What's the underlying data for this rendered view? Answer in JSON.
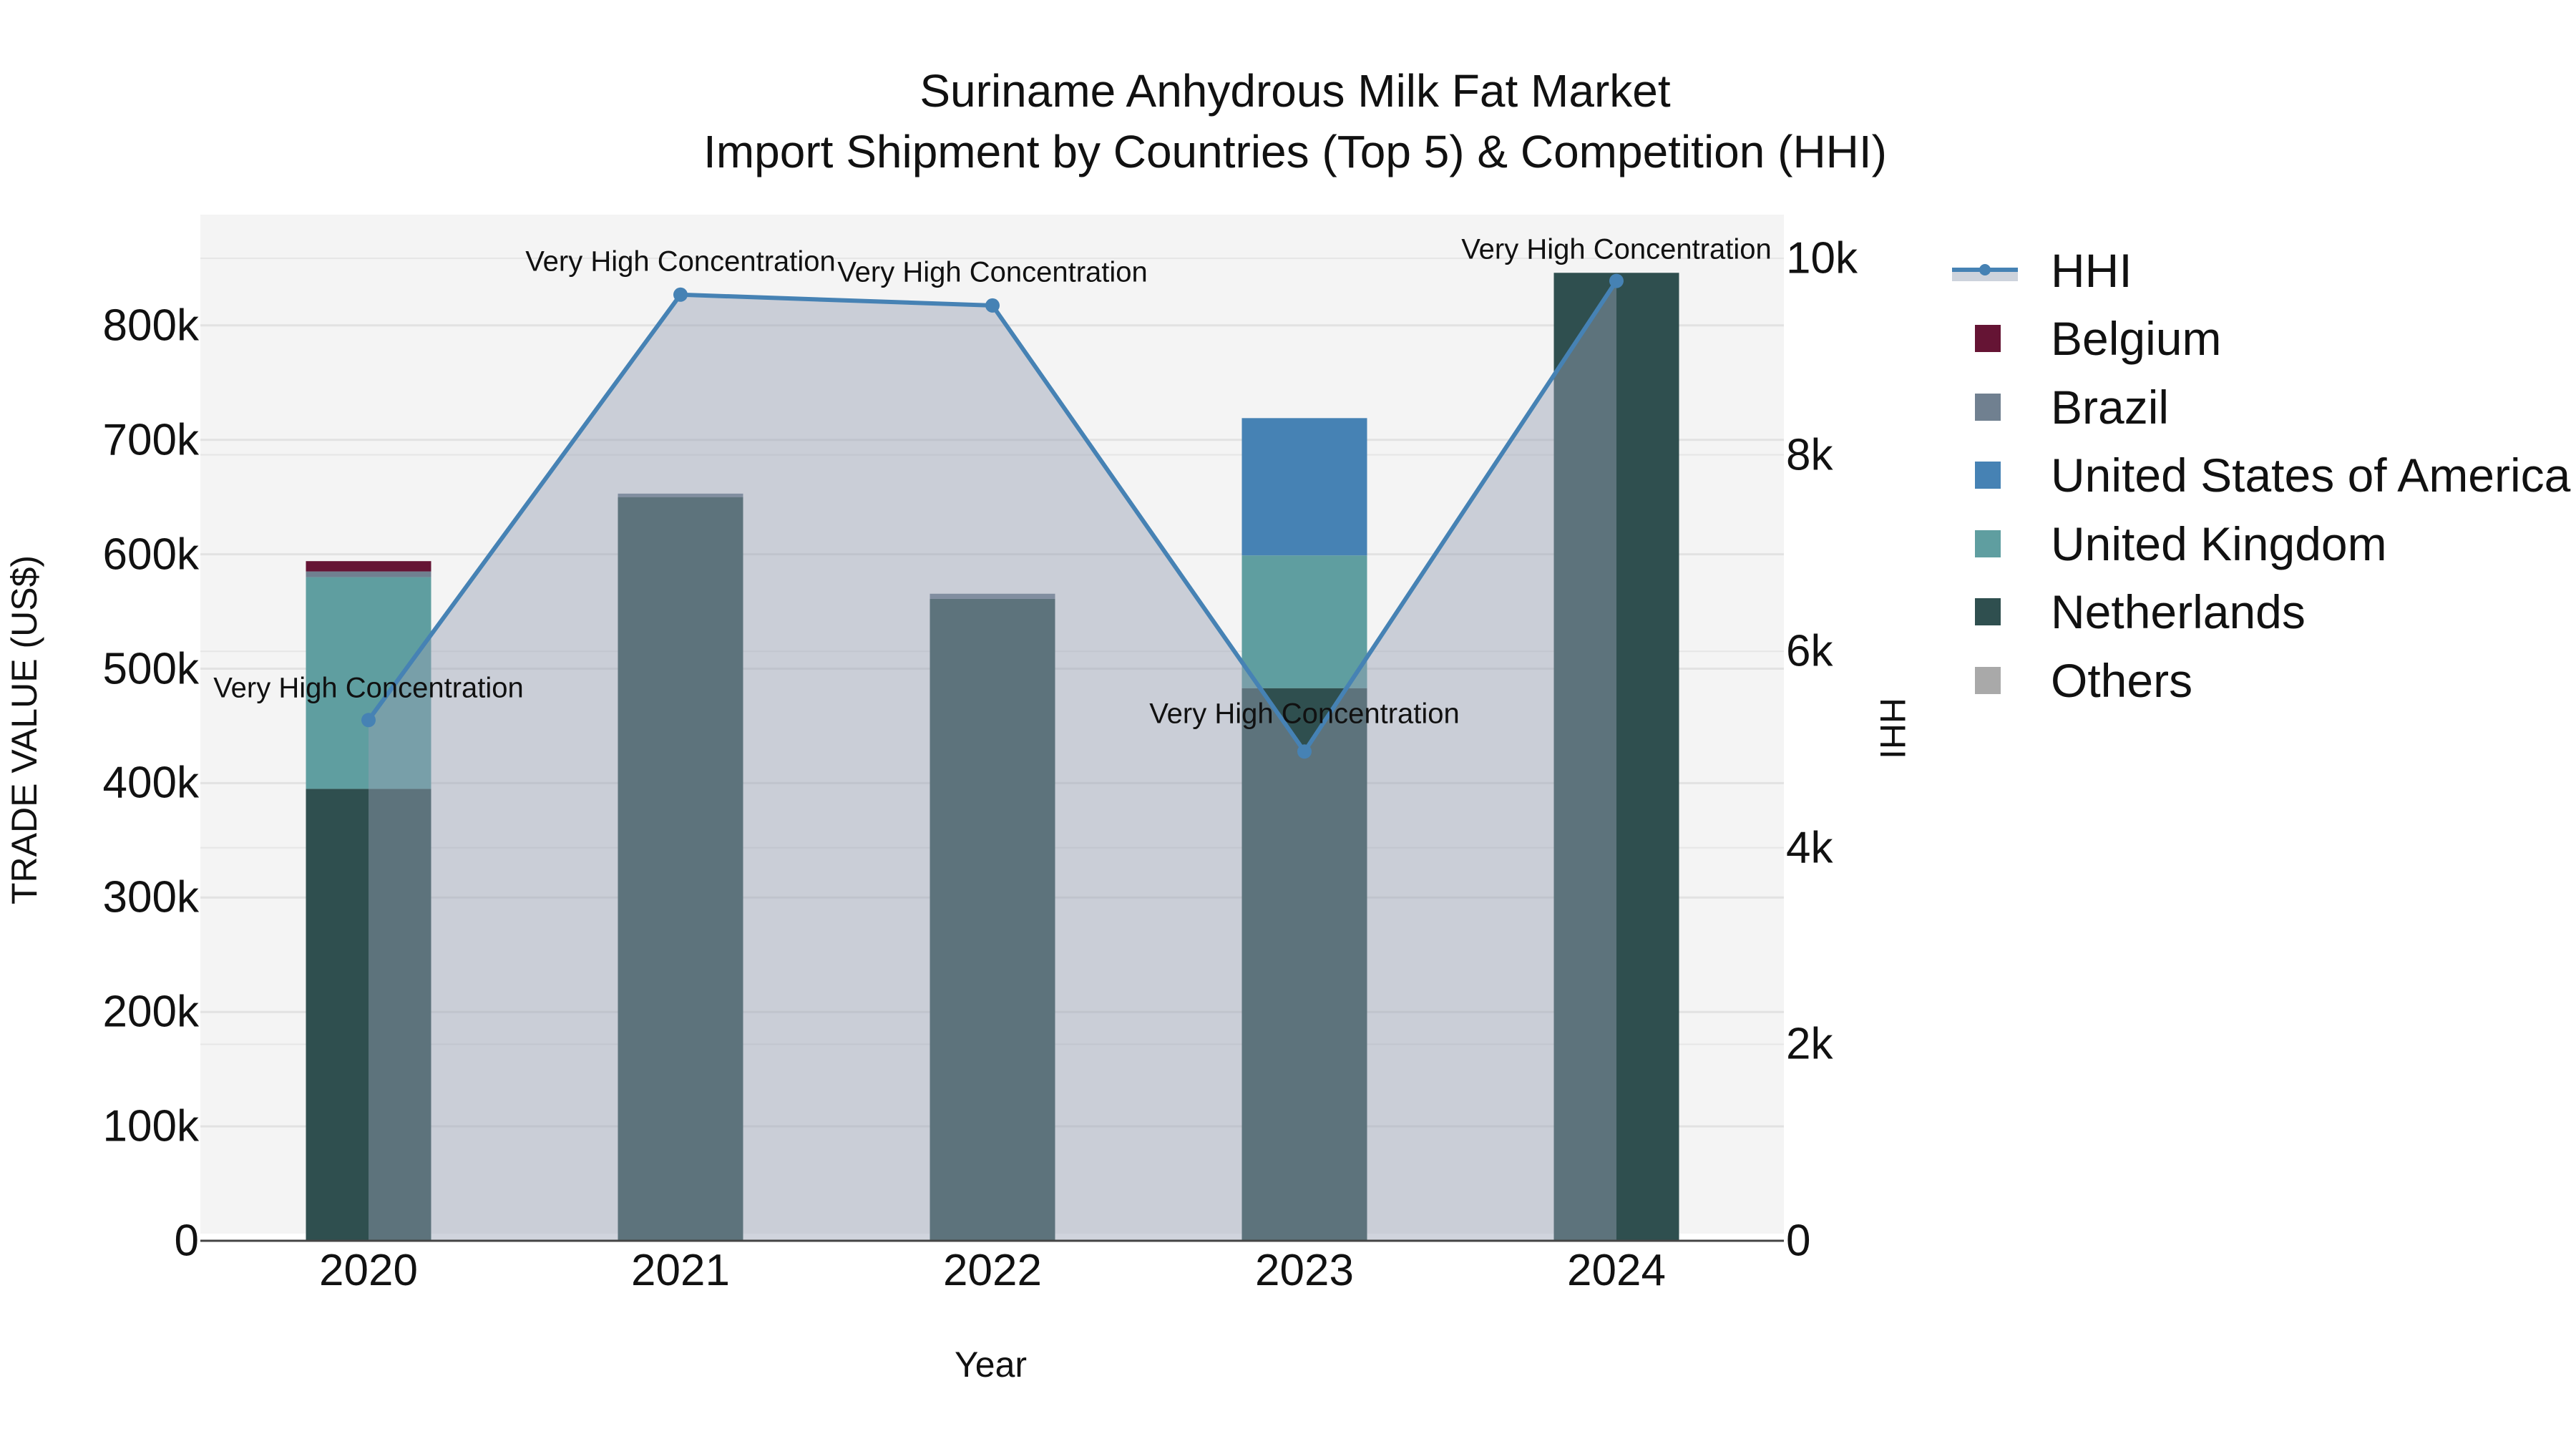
{
  "title": {
    "line1": "Suriname Anhydrous Milk Fat Market",
    "line2": "Import Shipment by Countries (Top 5) & Competition (HHI)"
  },
  "axes": {
    "x_title": "Year",
    "y_title": "TRADE VALUE (US$)",
    "y2_title": "HHI",
    "y_ticks": [
      "0",
      "100k",
      "200k",
      "300k",
      "400k",
      "500k",
      "600k",
      "700k",
      "800k"
    ],
    "y2_ticks": [
      "0",
      "2k",
      "4k",
      "6k",
      "8k",
      "10k"
    ],
    "x_ticks": [
      "2020",
      "2021",
      "2022",
      "2023",
      "2024"
    ]
  },
  "legend": {
    "items": [
      {
        "label": "HHI",
        "color": "#4682B4",
        "kind": "line"
      },
      {
        "label": "Belgium",
        "color": "#651434",
        "kind": "bar"
      },
      {
        "label": "Brazil",
        "color": "#708090",
        "kind": "bar"
      },
      {
        "label": "United States of America",
        "color": "#4682B4",
        "kind": "bar"
      },
      {
        "label": "United Kingdom",
        "color": "#5F9EA0",
        "kind": "bar"
      },
      {
        "label": "Netherlands",
        "color": "#2F4F4F",
        "kind": "bar"
      },
      {
        "label": "Others",
        "color": "#A9A9A9",
        "kind": "bar"
      }
    ]
  },
  "annotations": [
    {
      "year": "2020",
      "text": "Very High Concentration"
    },
    {
      "year": "2021",
      "text": "Very High Concentration"
    },
    {
      "year": "2022",
      "text": "Very High Concentration"
    },
    {
      "year": "2023",
      "text": "Very High Concentration"
    },
    {
      "year": "2024",
      "text": "Very High Concentration"
    }
  ],
  "chart_data": {
    "type": "bar",
    "stacked": true,
    "title": "Suriname Anhydrous Milk Fat Market — Import Shipment by Countries (Top 5) & Competition (HHI)",
    "xlabel": "Year",
    "ylabel": "TRADE VALUE (US$)",
    "y2label": "HHI",
    "categories": [
      "2020",
      "2021",
      "2022",
      "2023",
      "2024"
    ],
    "ylim": [
      0,
      890000
    ],
    "y2lim": [
      0,
      10350
    ],
    "grid": true,
    "legend_position": "right",
    "series": [
      {
        "name": "Netherlands",
        "type": "bar",
        "color": "#2F4F4F",
        "values": [
          395000,
          650000,
          561000,
          483000,
          846000
        ]
      },
      {
        "name": "United Kingdom",
        "type": "bar",
        "color": "#5F9EA0",
        "values": [
          185000,
          0,
          0,
          116000,
          0
        ]
      },
      {
        "name": "United States of America",
        "type": "bar",
        "color": "#4682B4",
        "values": [
          0,
          0,
          0,
          120000,
          0
        ]
      },
      {
        "name": "Brazil",
        "type": "bar",
        "color": "#708090",
        "values": [
          5000,
          3000,
          4500,
          0,
          0
        ]
      },
      {
        "name": "Belgium",
        "type": "bar",
        "color": "#651434",
        "values": [
          9000,
          0,
          0,
          0,
          0
        ]
      },
      {
        "name": "Others",
        "type": "bar",
        "color": "#A9A9A9",
        "values": [
          0,
          0,
          0,
          0,
          0
        ]
      },
      {
        "name": "HHI",
        "type": "line",
        "axis": "y2",
        "fill": "tozeroy",
        "color": "#4682B4",
        "values": [
          5300,
          9630,
          9520,
          4980,
          9770
        ],
        "labels": [
          "Very High Concentration",
          "Very High Concentration",
          "Very High Concentration",
          "Very High Concentration",
          "Very High Concentration"
        ]
      }
    ]
  }
}
